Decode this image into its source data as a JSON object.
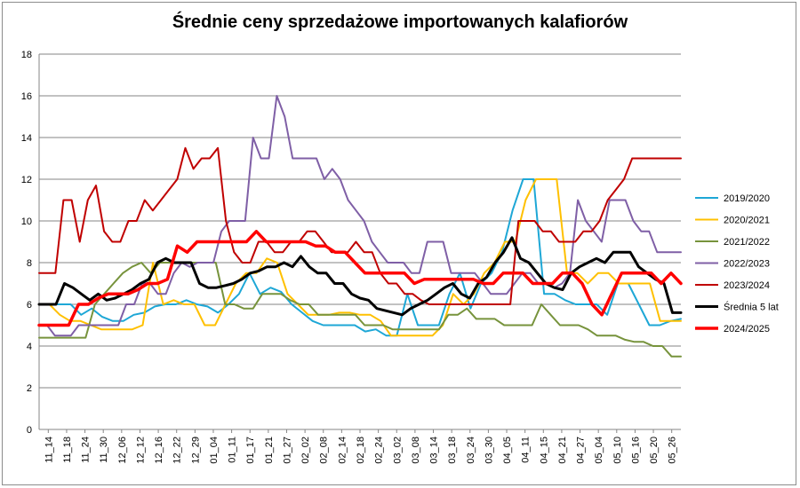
{
  "chart_data": {
    "type": "line",
    "title": "Średnie ceny sprzedażowe importowanych kalafiorów",
    "xlabel": "",
    "ylabel": "",
    "ylim": [
      0,
      18
    ],
    "yticks": [
      0,
      2,
      4,
      6,
      8,
      10,
      12,
      14,
      16,
      18
    ],
    "grid": "horizontal",
    "legend": "right",
    "x_tick_labels": [
      "11_14",
      "11_18",
      "11_24",
      "11_30",
      "12_06",
      "12_12",
      "12_16",
      "12_22",
      "12_29",
      "01_04",
      "01_11",
      "01_17",
      "01_21",
      "01_27",
      "02_02",
      "02_08",
      "02_14",
      "02_18",
      "02_24",
      "03_02",
      "03_08",
      "03_14",
      "03_18",
      "03_24",
      "03_30",
      "04_05",
      "04_11",
      "04_15",
      "04_21",
      "04_27",
      "05_04",
      "05_10",
      "05_16",
      "05_20",
      "05_26"
    ],
    "series": [
      {
        "name": "2019/2020",
        "color": "#1ea7d6",
        "width": 2,
        "values": [
          6.0,
          6.0,
          6.0,
          6.0,
          5.5,
          5.8,
          5.4,
          5.2,
          5.2,
          5.5,
          5.6,
          5.9,
          6.0,
          6.0,
          6.2,
          6.0,
          5.9,
          5.6,
          6.0,
          6.5,
          7.5,
          6.5,
          6.8,
          6.6,
          6.0,
          5.6,
          5.2,
          5.0,
          5.0,
          5.0,
          5.0,
          4.7,
          4.8,
          4.5,
          4.5,
          6.5,
          5.0,
          5.0,
          5.0,
          6.5,
          7.5,
          5.8,
          7.0,
          7.5,
          8.5,
          10.5,
          12.0,
          12.0,
          6.5,
          6.5,
          6.2,
          6.0,
          6.0,
          6.0,
          5.5,
          7.0,
          7.0,
          6.0,
          5.0,
          5.0,
          5.2,
          5.3
        ]
      },
      {
        "name": "2020/2021",
        "color": "#ffc000",
        "width": 2,
        "values": [
          6.0,
          6.0,
          5.5,
          5.2,
          5.2,
          5.0,
          4.8,
          4.8,
          4.8,
          4.8,
          5.0,
          8.0,
          6.0,
          6.2,
          6.0,
          6.0,
          5.0,
          5.0,
          6.0,
          7.0,
          7.5,
          7.5,
          8.2,
          8.0,
          6.5,
          6.0,
          5.5,
          5.5,
          5.5,
          5.6,
          5.6,
          5.5,
          5.5,
          5.2,
          4.5,
          4.5,
          4.5,
          4.5,
          4.5,
          5.0,
          6.5,
          6.0,
          6.5,
          7.5,
          8.0,
          9.0,
          9.0,
          11.0,
          12.0,
          12.0,
          12.0,
          7.5,
          7.5,
          7.0,
          7.5,
          7.5,
          7.0,
          7.0,
          7.0,
          7.0,
          5.2,
          5.2,
          5.2
        ]
      },
      {
        "name": "2021/2022",
        "color": "#77933c",
        "width": 2,
        "values": [
          4.4,
          4.4,
          4.4,
          4.4,
          4.4,
          4.4,
          6.0,
          6.5,
          7.0,
          7.5,
          7.8,
          8.0,
          7.5,
          8.0,
          8.0,
          8.0,
          8.0,
          8.0,
          8.0,
          8.0,
          6.0,
          6.0,
          5.8,
          5.8,
          6.5,
          6.5,
          6.5,
          6.2,
          6.0,
          6.0,
          5.5,
          5.5,
          5.5,
          5.5,
          5.5,
          5.0,
          5.0,
          5.0,
          4.8,
          4.8,
          4.8,
          4.8,
          4.8,
          4.8,
          5.5,
          5.5,
          5.8,
          5.3,
          5.3,
          5.3,
          5.0,
          5.0,
          5.0,
          5.0,
          6.0,
          5.5,
          5.0,
          5.0,
          5.0,
          4.8,
          4.5,
          4.5,
          4.5,
          4.3,
          4.2,
          4.2,
          4.0,
          4.0,
          3.5,
          3.5
        ]
      },
      {
        "name": "2022/2023",
        "color": "#7f5fa6",
        "width": 2,
        "values": [
          5.0,
          5.0,
          4.5,
          4.5,
          4.5,
          5.0,
          5.0,
          5.0,
          5.0,
          5.0,
          5.0,
          6.0,
          6.0,
          7.0,
          7.0,
          6.5,
          6.5,
          7.5,
          8.0,
          7.8,
          8.0,
          8.0,
          8.0,
          9.5,
          10.0,
          10.0,
          10.0,
          14.0,
          13.0,
          13.0,
          16.0,
          15.0,
          13.0,
          13.0,
          13.0,
          13.0,
          12.0,
          12.5,
          12.0,
          11.0,
          10.5,
          10.0,
          9.0,
          8.5,
          8.0,
          8.0,
          8.0,
          7.5,
          7.5,
          9.0,
          9.0,
          9.0,
          7.5,
          7.5,
          7.5,
          7.5,
          7.0,
          6.5,
          6.5,
          6.5,
          7.0,
          7.5,
          7.5,
          7.0,
          7.0,
          6.8,
          7.0,
          7.5,
          11.0,
          10.0,
          9.5,
          9.0,
          11.0,
          11.0,
          11.0,
          10.0,
          9.5,
          9.5,
          8.5,
          8.5,
          8.5,
          8.5
        ]
      },
      {
        "name": "2023/2024",
        "color": "#c00000",
        "width": 2,
        "values": [
          7.5,
          7.5,
          7.5,
          11.0,
          11.0,
          9.0,
          11.0,
          11.7,
          9.5,
          9.0,
          9.0,
          10.0,
          10.0,
          11.0,
          10.5,
          11.0,
          11.5,
          12.0,
          13.5,
          12.5,
          13.0,
          13.0,
          13.5,
          10.0,
          8.5,
          8.0,
          8.0,
          9.0,
          9.0,
          8.5,
          8.5,
          9.0,
          9.0,
          9.5,
          9.5,
          9.0,
          8.5,
          8.5,
          8.5,
          9.0,
          8.5,
          8.5,
          7.5,
          7.0,
          7.0,
          6.5,
          6.5,
          6.2,
          6.0,
          6.0,
          6.0,
          6.0,
          6.0,
          6.0,
          6.0,
          6.0,
          6.0,
          6.0,
          6.0,
          10.0,
          10.0,
          10.0,
          9.5,
          9.5,
          9.0,
          9.0,
          9.0,
          9.5,
          9.5,
          10.0,
          11.0,
          11.5,
          12.0,
          13.0,
          13.0,
          13.0,
          13.0,
          13.0,
          13.0,
          13.0
        ]
      },
      {
        "name": "Średnia 5 lat",
        "color": "#000000",
        "width": 3,
        "values": [
          6.0,
          6.0,
          6.0,
          7.0,
          6.8,
          6.5,
          6.2,
          6.5,
          6.2,
          6.3,
          6.5,
          6.7,
          7.0,
          7.2,
          8.0,
          8.2,
          8.0,
          8.0,
          8.0,
          7.0,
          6.8,
          6.8,
          6.9,
          7.0,
          7.2,
          7.5,
          7.6,
          7.8,
          7.8,
          8.0,
          7.8,
          8.3,
          7.8,
          7.5,
          7.5,
          7.0,
          7.0,
          6.5,
          6.3,
          6.2,
          5.8,
          5.7,
          5.6,
          5.5,
          5.8,
          6.0,
          6.2,
          6.5,
          6.8,
          7.0,
          6.5,
          6.3,
          7.0,
          7.3,
          8.0,
          8.5,
          9.2,
          8.2,
          8.0,
          7.5,
          7.0,
          6.8,
          6.7,
          7.5,
          7.8,
          8.0,
          8.2,
          8.0,
          8.5,
          8.5,
          8.5,
          7.8,
          7.5,
          7.2,
          7.0,
          5.6,
          5.6
        ]
      },
      {
        "name": "2024/2025",
        "color": "#ff0000",
        "width": 3.5,
        "values": [
          5.0,
          5.0,
          5.0,
          5.0,
          6.0,
          6.0,
          6.3,
          6.5,
          6.5,
          6.5,
          6.7,
          7.0,
          7.0,
          7.2,
          8.8,
          8.5,
          9.0,
          9.0,
          9.0,
          9.0,
          9.0,
          9.0,
          9.5,
          9.0,
          9.0,
          9.0,
          9.0,
          9.0,
          8.8,
          8.8,
          8.5,
          8.5,
          8.0,
          7.5,
          7.5,
          7.5,
          7.5,
          7.5,
          7.0,
          7.2,
          7.2,
          7.2,
          7.2,
          7.2,
          7.2,
          7.0,
          7.0,
          7.5,
          7.5,
          7.5,
          7.0,
          7.0,
          7.0,
          7.5,
          7.5,
          7.0,
          6.0,
          5.5,
          6.5,
          7.5,
          7.5,
          7.5,
          7.5,
          7.0,
          7.5,
          7.0
        ]
      }
    ]
  }
}
